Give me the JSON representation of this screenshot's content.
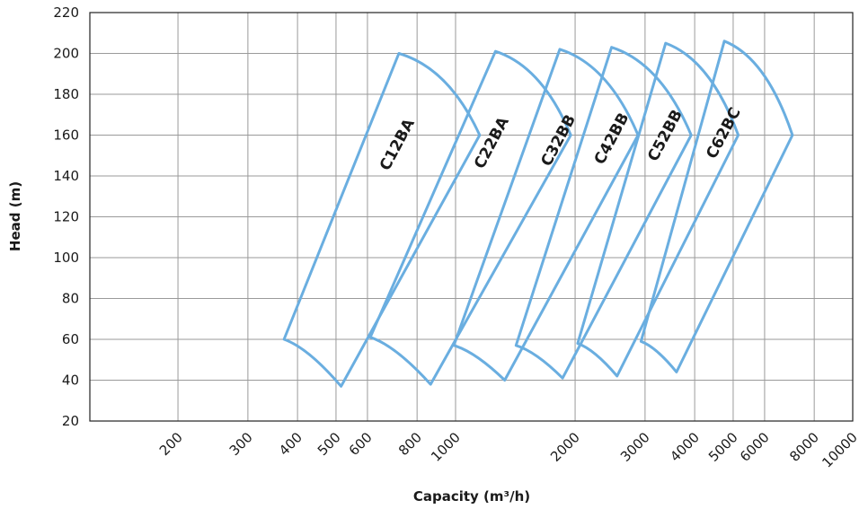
{
  "chart_data": {
    "type": "scatter",
    "xlabel": "Capacity (m³/h)",
    "ylabel": "Head (m)",
    "x_scale": "log",
    "xlim": [
      120,
      10000
    ],
    "ylim": [
      20,
      220
    ],
    "x_ticks": [
      200,
      300,
      400,
      500,
      600,
      800,
      1000,
      2000,
      3000,
      4000,
      5000,
      6000,
      8000,
      10000
    ],
    "y_ticks": [
      20,
      40,
      60,
      80,
      100,
      120,
      140,
      160,
      180,
      200,
      220
    ],
    "grid": true,
    "line_color": "#6aaee0",
    "series": [
      {
        "name": "C12BA",
        "top": [
          720,
          200
        ],
        "right": [
          1150,
          160
        ],
        "bottom": [
          515,
          37
        ],
        "left": [
          370,
          60
        ]
      },
      {
        "name": "C22BA",
        "top": [
          1260,
          201
        ],
        "right": [
          1950,
          160
        ],
        "bottom": [
          865,
          38
        ],
        "left": [
          610,
          61
        ]
      },
      {
        "name": "C32BB",
        "top": [
          1830,
          202
        ],
        "right": [
          2880,
          160
        ],
        "bottom": [
          1330,
          40
        ],
        "left": [
          990,
          57
        ]
      },
      {
        "name": "C42BB",
        "top": [
          2470,
          203
        ],
        "right": [
          3920,
          160
        ],
        "bottom": [
          1860,
          41
        ],
        "left": [
          1420,
          57
        ]
      },
      {
        "name": "C52BB",
        "top": [
          3380,
          205
        ],
        "right": [
          5150,
          160
        ],
        "bottom": [
          2550,
          42
        ],
        "left": [
          2030,
          58
        ]
      },
      {
        "name": "C62BC",
        "top": [
          4750,
          206
        ],
        "right": [
          7050,
          160
        ],
        "bottom": [
          3600,
          44
        ],
        "left": [
          2930,
          59
        ]
      }
    ]
  }
}
